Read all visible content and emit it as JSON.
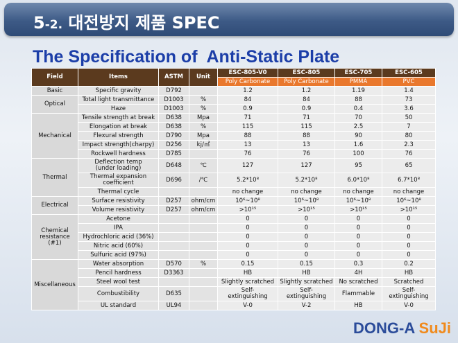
{
  "header": {
    "number": "5",
    "sub": "-2.",
    "text": "대전방지 제품 SPEC"
  },
  "title": "The Specification of  Anti-Static Plate",
  "table": {
    "columns": [
      "Field",
      "Items",
      "ASTM",
      "Unit"
    ],
    "products": [
      {
        "name": "ESC-805-V0",
        "material": "Poly Carbonate"
      },
      {
        "name": "ESC-805",
        "material": "Poly Carbonate"
      },
      {
        "name": "ESC-705",
        "material": "PMMA"
      },
      {
        "name": "ESC-605",
        "material": "PVC"
      }
    ],
    "groups": [
      {
        "field": "Basic",
        "rows": [
          {
            "item": "Specific gravity",
            "astm": "D792",
            "unit": null,
            "values": [
              "1.2",
              "1.2",
              "1.19",
              "1.4"
            ]
          }
        ]
      },
      {
        "field": "Optical",
        "rows": [
          {
            "item": "Total light transmittance",
            "astm": "D1003",
            "unit": "%",
            "values": [
              "84",
              "84",
              "88",
              "73"
            ]
          },
          {
            "item": "Haze",
            "astm": "D1003",
            "unit": "%",
            "values": [
              "0.9",
              "0.9",
              "0.4",
              "3.6"
            ]
          }
        ]
      },
      {
        "field": "Mechanical",
        "rows": [
          {
            "item": "Tensile strength at break",
            "astm": "D638",
            "unit": "Mpa",
            "values": [
              "71",
              "71",
              "70",
              "50"
            ]
          },
          {
            "item": "Elongation at break",
            "astm": "D638",
            "unit": "%",
            "values": [
              "115",
              "115",
              "2.5",
              "7"
            ]
          },
          {
            "item": "Flexural strength",
            "astm": "D790",
            "unit": "Mpa",
            "values": [
              "88",
              "88",
              "90",
              "80"
            ]
          },
          {
            "item": "Impact strength(charpy)",
            "astm": "D256",
            "unit": "kj/㎡",
            "values": [
              "13",
              "13",
              "1.6",
              "2.3"
            ]
          },
          {
            "item": "Rockwell hardness",
            "astm": "D785",
            "unit": null,
            "values": [
              "76",
              "76",
              "100",
              "76"
            ]
          }
        ]
      },
      {
        "field": "Thermal",
        "rows": [
          {
            "item": "Deflection temp\n(under loading)",
            "astm": "D648",
            "unit": "℃",
            "values": [
              "127",
              "127",
              "95",
              "65"
            ]
          },
          {
            "item": "Thermal expansion\ncoefficient",
            "astm": "D696",
            "unit": "/℃",
            "values": [
              "5.2*10⁸",
              "5.2*10⁸",
              "6.0*10⁸",
              "6.7*10⁸"
            ]
          },
          {
            "item": "Thermal cycle",
            "astm": null,
            "unit": null,
            "values": [
              "no change",
              "no change",
              "no change",
              "no change"
            ]
          }
        ]
      },
      {
        "field": "Electrical",
        "rows": [
          {
            "item": "Surface resistivity",
            "astm": "D257",
            "unit": "ohm/cm",
            "values": [
              "10⁶~10⁸",
              "10⁶~10⁸",
              "10⁶~10⁸",
              "10⁶~10⁸"
            ]
          },
          {
            "item": "Volume resistivity",
            "astm": "D257",
            "unit": "ohm/cm",
            "values": [
              ">10¹⁵",
              ">10¹⁵",
              ">10¹⁵",
              ">10¹⁵"
            ]
          }
        ]
      },
      {
        "field": "Chemical\nresistance\n(#1)",
        "rows": [
          {
            "item": "Acetone",
            "astm": null,
            "unit": null,
            "values": [
              "0",
              "0",
              "0",
              "0"
            ]
          },
          {
            "item": "IPA",
            "astm": null,
            "unit": null,
            "values": [
              "0",
              "0",
              "0",
              "0"
            ]
          },
          {
            "item": "Hydrochloric acid (36%)",
            "astm": null,
            "unit": null,
            "values": [
              "0",
              "0",
              "0",
              "0"
            ]
          },
          {
            "item": "Nitric acid (60%)",
            "astm": null,
            "unit": null,
            "values": [
              "0",
              "0",
              "0",
              "0"
            ]
          },
          {
            "item": "Sulfuric acid (97%)",
            "astm": null,
            "unit": null,
            "values": [
              "0",
              "0",
              "0",
              "0"
            ]
          }
        ]
      },
      {
        "field": "Miscellaneous",
        "rows": [
          {
            "item": "Water absorption",
            "astm": "D570",
            "unit": "%",
            "values": [
              "0.15",
              "0.15",
              "0.3",
              "0.2"
            ]
          },
          {
            "item": "Pencil hardness",
            "astm": "D3363",
            "unit": null,
            "values": [
              "HB",
              "HB",
              "4H",
              "HB"
            ]
          },
          {
            "item": "Steel wool test",
            "astm": null,
            "unit": null,
            "values": [
              "Slightly  scratched",
              "Slightly  scratched",
              "No scratched",
              "Scratched"
            ]
          },
          {
            "item": "Combustibility",
            "astm": "D635",
            "unit": null,
            "values": [
              "Self-\nextinguishing",
              "Self-\nextinguishing",
              "Flammable",
              "Self-\nextinguishing"
            ]
          },
          {
            "item": "UL standard",
            "astm": "UL94",
            "unit": null,
            "values": [
              "V-0",
              "V-2",
              "HB",
              "V-0"
            ]
          }
        ]
      }
    ]
  },
  "logo": {
    "left": "DONG-A",
    "right": "SuJi"
  }
}
